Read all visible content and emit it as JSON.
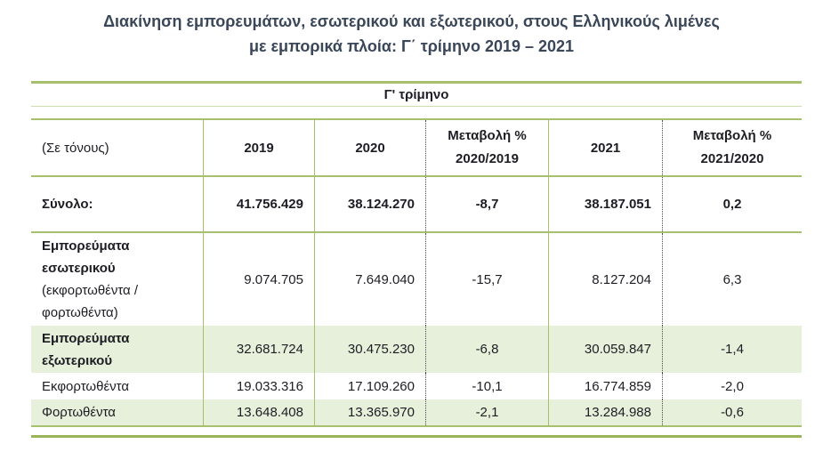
{
  "title": {
    "line1": "Διακίνηση εμπορευμάτων, εσωτερικού και εξωτερικού, στους Ελληνικούς λιμένες",
    "line2": "με εμπορικά πλοία: Γ΄ τρίμηνο 2019 – 2021"
  },
  "table": {
    "band_title": "Γ' τρίμηνο",
    "unit_label": "(Σε τόνους)",
    "columns": [
      {
        "label": "2019",
        "sub": ""
      },
      {
        "label": "2020",
        "sub": ""
      },
      {
        "label": "Μεταβολή %",
        "sub": "2020/2019"
      },
      {
        "label": "2021",
        "sub": ""
      },
      {
        "label": "Μεταβολή %",
        "sub": "2021/2020"
      }
    ],
    "rows": [
      {
        "label": "Σύνολο:",
        "sublabel": "",
        "values": [
          "41.756.429",
          "38.124.270",
          "-8,7",
          "38.187.051",
          "0,2"
        ]
      },
      {
        "label": "Εμπορεύματα εσωτερικού",
        "sublabel": "(εκφορτωθέντα / φορτωθέντα)",
        "values": [
          "9.074.705",
          "7.649.040",
          "-15,7",
          "8.127.204",
          "6,3"
        ]
      },
      {
        "label": "Εμπορεύματα εξωτερικού",
        "sublabel": "",
        "values": [
          "32.681.724",
          "30.475.230",
          "-6,8",
          "30.059.847",
          "-1,4"
        ]
      },
      {
        "label": "Εκφορτωθέντα",
        "sublabel": "",
        "values": [
          "19.033.316",
          "17.109.260",
          "-10,1",
          "16.774.859",
          "-2,0"
        ]
      },
      {
        "label": "Φορτωθέντα",
        "sublabel": "",
        "values": [
          "13.648.408",
          "13.365.970",
          "-2,1",
          "13.284.988",
          "-0,6"
        ]
      }
    ]
  },
  "colors": {
    "rule_green": "#a6c06e",
    "rule_green_light": "#cdddab",
    "rule_green_dark": "#9ab45a",
    "shade_green": "#e7f0da",
    "title_color": "#3a4759",
    "text_color": "#1d1d24",
    "dotted_border": "#4a4a4a"
  }
}
